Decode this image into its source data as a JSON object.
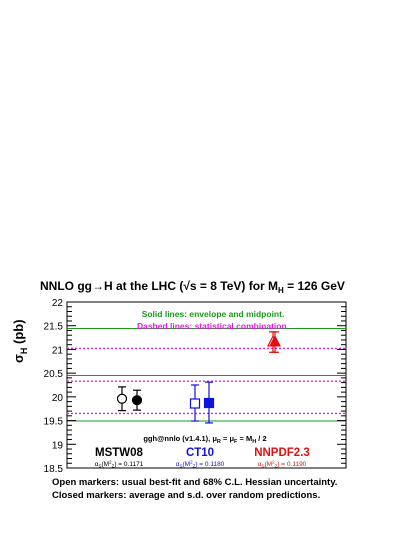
{
  "chart_data": {
    "type": "scatter",
    "title": "NNLO gg→H at the LHC (√s = 8 TeV) for M",
    "title_sub": "H",
    "title_tail": " = 126 GeV",
    "ylabel_main": "σ",
    "ylabel_sub": "H",
    "ylabel_unit": " (pb)",
    "ylim": [
      18.5,
      22.0
    ],
    "yticks": [
      "18.5",
      "19",
      "19.5",
      "20",
      "20.5",
      "21",
      "21.5",
      "22"
    ],
    "legend_solid": "Solid lines: envelope and midpoint.",
    "legend_dashed": "Dashed lines: statistical combination.",
    "legend_solid_color": "#1a9a1a",
    "legend_dashed_color": "#e020e0",
    "solid_lines": [
      19.49,
      20.45,
      21.44
    ],
    "dashed_lines": [
      19.65,
      20.33,
      21.02
    ],
    "program_note_a": "ggh@nnlo (v1.4.1), μ",
    "program_note_b": "R",
    "program_note_c": " = μ",
    "program_note_d": "F",
    "program_note_e": " = M",
    "program_note_f": "H",
    "program_note_g": " / 2",
    "groups": [
      {
        "name": "MSTW08",
        "color": "#000000",
        "alpha_a": "α",
        "alpha_b": "S",
        "alpha_c": "(M",
        "alpha_d": "2",
        "alpha_e": "Z",
        "alpha_f": ") = 0.1171",
        "points": [
          {
            "marker": "open-circle",
            "y": 19.96,
            "yerr_low": 0.25,
            "yerr_high": 0.25
          },
          {
            "marker": "filled-circle",
            "y": 19.93,
            "yerr_low": 0.21,
            "yerr_high": 0.21
          }
        ]
      },
      {
        "name": "CT10",
        "color": "#1010e0",
        "alpha_a": "α",
        "alpha_b": "S",
        "alpha_c": "(M",
        "alpha_d": "2",
        "alpha_e": "Z",
        "alpha_f": ") = 0.1180",
        "points": [
          {
            "marker": "open-square",
            "y": 19.86,
            "yerr_low": 0.37,
            "yerr_high": 0.39
          },
          {
            "marker": "filled-square",
            "y": 19.87,
            "yerr_low": 0.42,
            "yerr_high": 0.44
          }
        ]
      },
      {
        "name": "NNPDF2.3",
        "color": "#e01010",
        "alpha_a": "α",
        "alpha_b": "S",
        "alpha_c": "(M",
        "alpha_d": "2",
        "alpha_e": "Z",
        "alpha_f": ") = 0.1190",
        "points": [
          {
            "marker": "open-triangle",
            "y": 21.16,
            "yerr_low": 0.22,
            "yerr_high": 0.21
          },
          {
            "marker": "filled-triangle",
            "y": 21.16,
            "yerr_low": 0.22,
            "yerr_high": 0.21
          }
        ]
      }
    ],
    "footnote_1": "Open markers: usual best-fit and 68% C.L. Hessian uncertainty.",
    "footnote_2": "Closed markers: average and s.d. over random predictions."
  }
}
